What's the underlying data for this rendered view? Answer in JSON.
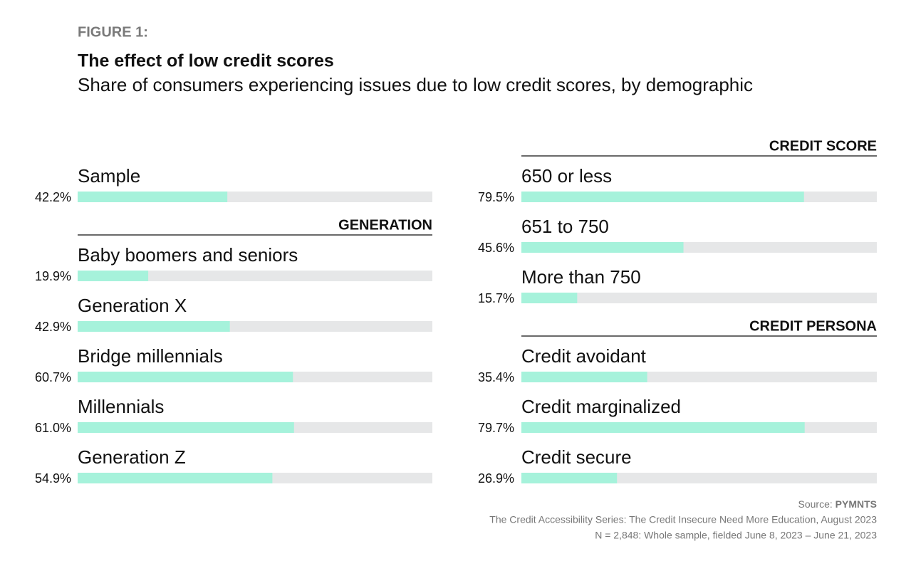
{
  "figure_label": "FIGURE 1:",
  "title": "The effect of low credit scores",
  "subtitle": "Share of consumers experiencing issues due to low credit scores, by demographic",
  "source_label": "Source:",
  "source_name": "PYMNTS",
  "notes": [
    "The Credit Accessibility Series: The Credit Insecure Need More Education, August 2023",
    "N = 2,848: Whole sample, fielded June 8, 2023 – June 21, 2023"
  ],
  "chart_data": [
    {
      "type": "bar",
      "categories": [
        "Sample"
      ],
      "values": [
        42.2
      ],
      "value_labels": [
        "42.2%"
      ],
      "color": "#a6f2db",
      "track_color": "#e6e7e8",
      "xlim": [
        0,
        100
      ]
    },
    {
      "type": "bar",
      "title": "GENERATION",
      "categories": [
        "Baby boomers and seniors",
        "Generation X",
        "Bridge millennials",
        "Millennials",
        "Generation Z"
      ],
      "values": [
        19.9,
        42.9,
        60.7,
        61.0,
        54.9
      ],
      "value_labels": [
        "19.9%",
        "42.9%",
        "60.7%",
        "61.0%",
        "54.9%"
      ],
      "color": "#a6f2db",
      "track_color": "#e6e7e8",
      "xlim": [
        0,
        100
      ]
    },
    {
      "type": "bar",
      "title": "CREDIT SCORE",
      "categories": [
        "650 or less",
        "651 to 750",
        "More than 750"
      ],
      "values": [
        79.5,
        45.6,
        15.7
      ],
      "value_labels": [
        "79.5%",
        "45.6%",
        "15.7%"
      ],
      "color": "#a6f2db",
      "track_color": "#e6e7e8",
      "xlim": [
        0,
        100
      ]
    },
    {
      "type": "bar",
      "title": "CREDIT PERSONA",
      "categories": [
        "Credit avoidant",
        "Credit marginalized",
        "Credit secure"
      ],
      "values": [
        35.4,
        79.7,
        26.9
      ],
      "value_labels": [
        "35.4%",
        "79.7%",
        "26.9%"
      ],
      "color": "#a6f2db",
      "track_color": "#e6e7e8",
      "xlim": [
        0,
        100
      ]
    }
  ]
}
